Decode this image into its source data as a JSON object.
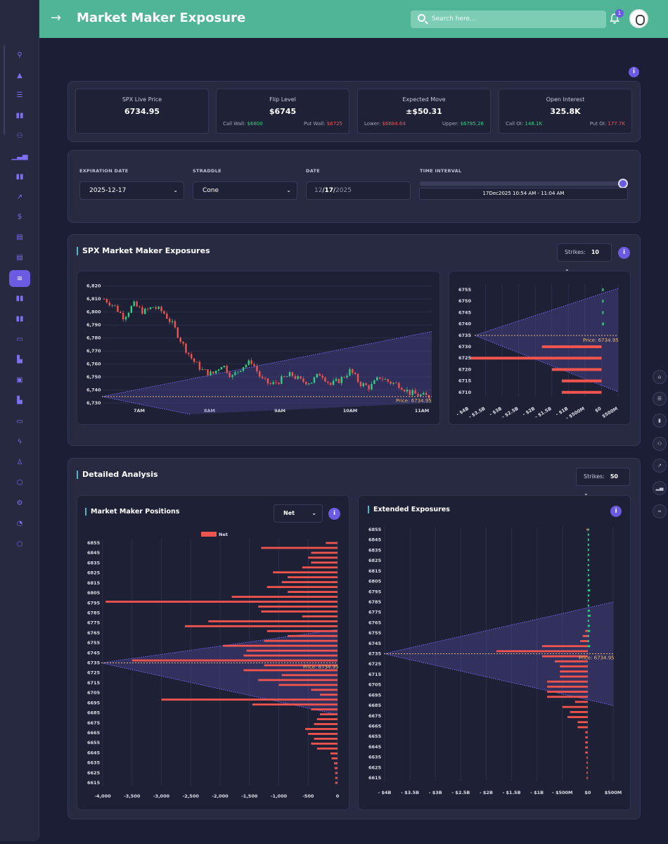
{
  "header": {
    "title": "Market Maker Exposure",
    "search_placeholder": "Search here...",
    "notif_count": "1"
  },
  "stats": [
    {
      "label": "SPX Live Price",
      "value": "6734.95"
    },
    {
      "label": "Flip Level",
      "value": "$6745",
      "left_label": "Call Wall: ",
      "left_value": "$6800",
      "right_label": "Put Wall: ",
      "right_value": "$6725"
    },
    {
      "label": "Expected Move",
      "value": "±$50.31",
      "left_label": "Lower: ",
      "left_value": "$6684.64",
      "right_label": "Upper: ",
      "right_value": "$6785.26"
    },
    {
      "label": "Open Interest",
      "value": "325.8K",
      "left_label": "Call OI: ",
      "left_value": "148.1K",
      "right_label": "Put OI: ",
      "right_value": "177.7K"
    }
  ],
  "filters": {
    "expiration_label": "EXPIRATION DATE",
    "expiration_value": "2025-12-17",
    "straddle_label": "STRADDLE",
    "straddle_value": "Cone",
    "date_label": "DATE",
    "date_month": "12",
    "date_sep1": "/",
    "date_day": "17",
    "date_sep2": "/",
    "date_year": "2025",
    "interval_label": "TIME INTERVAL",
    "interval_value": "17Dec2025 10:54 AM - 11:04 AM"
  },
  "colors": {
    "accent": "#6a5be2",
    "header": "#4fb596",
    "positive": "#2fd184",
    "negative": "#f0544f",
    "price_line": "#e3b871"
  },
  "exposures": {
    "title": "SPX Market Maker Exposures",
    "strikes_label": "Strikes:",
    "strikes_value": "10"
  },
  "analysis": {
    "title": "Detailed Analysis",
    "strikes_label": "Strikes:",
    "strikes_value": "50",
    "positions_title": "Market Maker Positions",
    "positions_select": "Net",
    "extended_title": "Extended Exposures"
  },
  "chart_data": [
    {
      "type": "candlestick",
      "y_ticks": [
        "6,820",
        "6,810",
        "6,800",
        "6,790",
        "6,780",
        "6,770",
        "6,760",
        "6,750",
        "6,740",
        "6,730"
      ],
      "ylim": [
        6730,
        6822
      ],
      "x_ticks": [
        "7AM",
        "8AM",
        "9AM",
        "10AM",
        "11AM"
      ],
      "price_label": "Price: 6734.95",
      "price": 6734.95,
      "cone": {
        "apex": 6735,
        "upper_end": 6785,
        "lower_end": 6684
      },
      "close_path": [
        6810,
        6805,
        6796,
        6806,
        6800,
        6804,
        6800,
        6790,
        6775,
        6763,
        6755,
        6752,
        6760,
        6750,
        6758,
        6762,
        6748,
        6744,
        6748,
        6752,
        6747,
        6746,
        6753,
        6744,
        6748,
        6755,
        6745,
        6742,
        6750,
        6746,
        6744,
        6738,
        6736,
        6734.95
      ]
    },
    {
      "type": "bar",
      "orientation": "horizontal",
      "strikes": [
        6755,
        6750,
        6745,
        6740,
        6735,
        6730,
        6725,
        6720,
        6715,
        6710
      ],
      "values": [
        20000000.0,
        40000000.0,
        10000000.0,
        50000000.0,
        0,
        -1800000000.0,
        -3950000000.0,
        -1500000000.0,
        -1200000000.0,
        -1200000000.0
      ],
      "x_ticks": [
        "- $4B",
        "- $3.5B",
        "- $3B",
        "- $2.5B",
        "- $2B",
        "- $1.5B",
        "- $1B",
        "- $500M",
        "$0",
        "$500M"
      ],
      "xlim": [
        -4000000000.0,
        500000000.0
      ],
      "price_label": "Price: 6734.95",
      "price": 6734.95,
      "cone": {
        "apex": 6735,
        "upper_end": 6785,
        "lower_end": 6684
      }
    },
    {
      "type": "bar",
      "orientation": "horizontal",
      "title": "Market Maker Positions",
      "legend": [
        "Net"
      ],
      "strike_ticks": [
        6855,
        6845,
        6835,
        6825,
        6815,
        6805,
        6795,
        6785,
        6775,
        6765,
        6755,
        6745,
        6735,
        6725,
        6715,
        6705,
        6695,
        6685,
        6675,
        6665,
        6655,
        6645,
        6635,
        6625,
        6615
      ],
      "values": [
        -200,
        -1300,
        -450,
        -500,
        -450,
        -600,
        -1100,
        -850,
        -950,
        -1200,
        -850,
        -1800,
        -3950,
        -1350,
        -1300,
        -600,
        -2200,
        -2600,
        -1200,
        -850,
        -1250,
        -1950,
        -1550,
        -1600,
        -3500,
        -1250,
        -1600,
        -950,
        -1350,
        -1000,
        -450,
        -300,
        -3000,
        -1450,
        -450,
        -300,
        -350,
        -400,
        -550,
        -500,
        -400,
        -450,
        -350,
        -120,
        -100,
        -60,
        -50,
        -40,
        -40,
        -40
      ],
      "x_ticks": [
        "-4,000",
        "-3,500",
        "-3,000",
        "-2,500",
        "-2,000",
        "-1,500",
        "-1,000",
        "-500",
        "0"
      ],
      "xlim": [
        -4000,
        0
      ],
      "price_label": "Price: 6734.95",
      "price": 6734.95,
      "cone": {
        "apex": 6735,
        "upper_end": 6785,
        "lower_end": 6684
      }
    },
    {
      "type": "bar",
      "orientation": "horizontal",
      "title": "Extended Exposures",
      "strike_ticks": [
        6855,
        6845,
        6835,
        6825,
        6815,
        6805,
        6795,
        6785,
        6775,
        6765,
        6755,
        6745,
        6735,
        6725,
        6715,
        6705,
        6695,
        6685,
        6675,
        6665,
        6655,
        6645,
        6635,
        6625,
        6615
      ],
      "x_ticks": [
        "- $4B",
        "- $3.5B",
        "- $3B",
        "- $2.5B",
        "- $2B",
        "- $1.5B",
        "- $1B",
        "- $500M",
        "$0",
        "$500M"
      ],
      "xlim": [
        -4000000000.0,
        500000000.0
      ],
      "price_label": "Price: 6734.95",
      "price": 6734.95,
      "cone": {
        "apex": 6735,
        "upper_end": 6785,
        "lower_end": 6684
      }
    }
  ]
}
